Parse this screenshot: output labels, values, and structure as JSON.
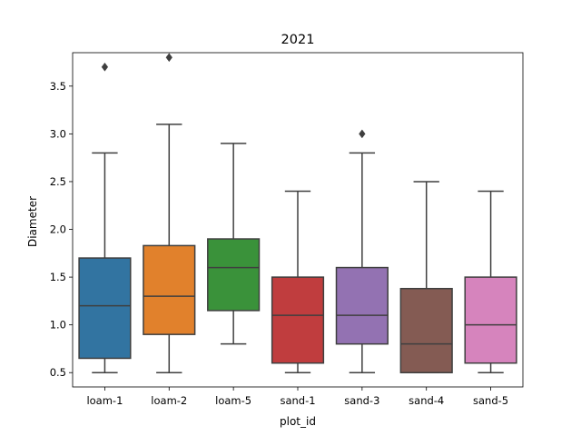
{
  "chart_data": {
    "type": "box",
    "title": "2021",
    "xlabel": "plot_id",
    "ylabel": "Diameter",
    "ylim": [
      0.35,
      3.85
    ],
    "yticks": [
      0.5,
      1.0,
      1.5,
      2.0,
      2.5,
      3.0,
      3.5
    ],
    "grid": false,
    "categories": [
      "loam-1",
      "loam-2",
      "loam-5",
      "sand-1",
      "sand-3",
      "sand-4",
      "sand-5"
    ],
    "boxes": [
      {
        "category": "loam-1",
        "whisker_low": 0.5,
        "q1": 0.65,
        "median": 1.2,
        "q3": 1.7,
        "whisker_high": 2.8,
        "outliers": [
          3.7
        ],
        "color": "#3274a1"
      },
      {
        "category": "loam-2",
        "whisker_low": 0.5,
        "q1": 0.9,
        "median": 1.3,
        "q3": 1.83,
        "whisker_high": 3.1,
        "outliers": [
          3.8
        ],
        "color": "#e1812c"
      },
      {
        "category": "loam-5",
        "whisker_low": 0.8,
        "q1": 1.15,
        "median": 1.6,
        "q3": 1.9,
        "whisker_high": 2.9,
        "outliers": [],
        "color": "#3a923a"
      },
      {
        "category": "sand-1",
        "whisker_low": 0.5,
        "q1": 0.6,
        "median": 1.1,
        "q3": 1.5,
        "whisker_high": 2.4,
        "outliers": [],
        "color": "#c03d3e"
      },
      {
        "category": "sand-3",
        "whisker_low": 0.5,
        "q1": 0.8,
        "median": 1.1,
        "q3": 1.6,
        "whisker_high": 2.8,
        "outliers": [
          3.0
        ],
        "color": "#9372b2"
      },
      {
        "category": "sand-4",
        "whisker_low": 0.5,
        "q1": 0.5,
        "median": 0.8,
        "q3": 1.38,
        "whisker_high": 2.5,
        "outliers": [],
        "color": "#845b53"
      },
      {
        "category": "sand-5",
        "whisker_low": 0.5,
        "q1": 0.6,
        "median": 1.0,
        "q3": 1.5,
        "whisker_high": 2.4,
        "outliers": [],
        "color": "#d684bd"
      }
    ]
  }
}
